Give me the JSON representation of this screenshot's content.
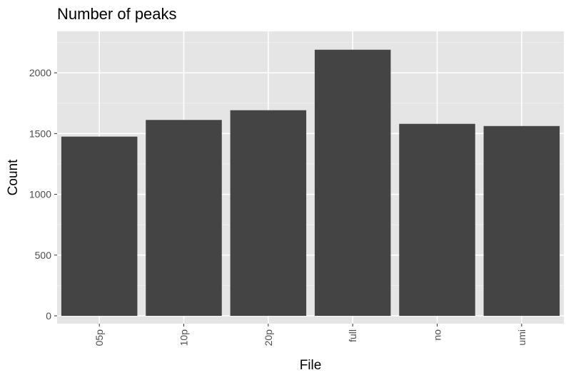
{
  "chart_data": {
    "type": "bar",
    "title": "Number of peaks",
    "xlabel": "File",
    "ylabel": "Count",
    "categories": [
      "05p",
      "10p",
      "20p",
      "full",
      "no",
      "umi"
    ],
    "values": [
      1475,
      1612,
      1692,
      2190,
      1580,
      1562
    ],
    "ylim": [
      0,
      2300
    ],
    "yticks": [
      0,
      500,
      1000,
      1500,
      2000
    ],
    "bar_color": "#444444",
    "panel_color": "#e5e5e5",
    "grid": true,
    "legend": "none"
  }
}
